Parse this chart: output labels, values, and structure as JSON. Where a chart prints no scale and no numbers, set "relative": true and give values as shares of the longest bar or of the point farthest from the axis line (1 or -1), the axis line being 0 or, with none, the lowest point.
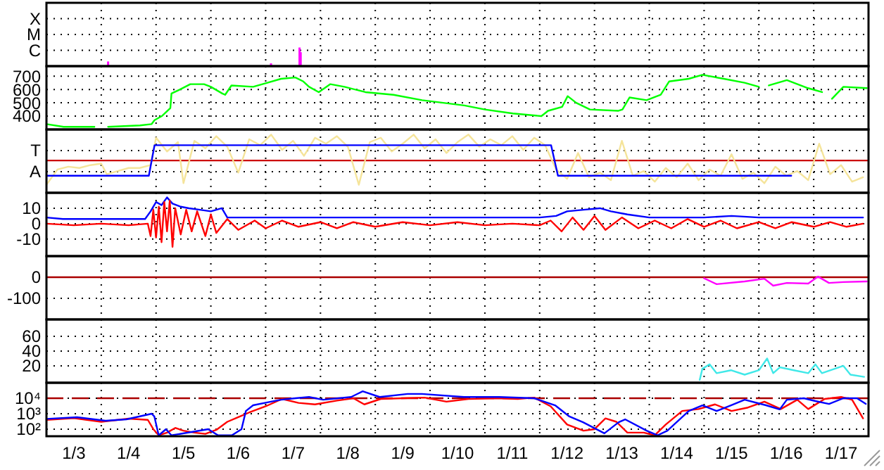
{
  "chart_data": [
    {
      "type": "bar",
      "relative": true,
      "xlim": [
        "--01-03",
        "--01-18"
      ],
      "xticks": [
        {
          "value": "--01-04",
          "label": null
        },
        {
          "value": "--01-05",
          "label": null
        },
        {
          "value": "--01-06",
          "label": null
        },
        {
          "value": "--01-07",
          "label": null
        },
        {
          "value": "--01-08",
          "label": null
        },
        {
          "value": "--01-09",
          "label": null
        },
        {
          "value": "--01-10",
          "label": null
        },
        {
          "value": "--01-11",
          "label": null
        },
        {
          "value": "--01-12",
          "label": null
        },
        {
          "value": "--01-13",
          "label": null
        },
        {
          "value": "--01-14",
          "label": null
        },
        {
          "value": "--01-15",
          "label": null
        },
        {
          "value": "--01-16",
          "label": null
        },
        {
          "value": "--01-17",
          "label": null
        }
      ],
      "tick_labels": false,
      "grid": true,
      "annotations": [
        "X",
        "M",
        "C"
      ],
      "series": [
        {
          "color": "#ff00ff",
          "x": [
            "--01-04T03:00",
            "--01-07T02:20",
            "--01-07T14:50",
            "--01-07T15:20"
          ],
          "values": [
            0.25,
            0.15,
            1,
            0.75
          ]
        }
      ]
    },
    {
      "type": "line",
      "xlim": [
        "--01-03",
        "--01-18"
      ],
      "ylim": [
        300,
        775
      ],
      "yticks": [
        700,
        600,
        500,
        400
      ],
      "xticks": [
        {
          "value": "--01-04",
          "label": null
        },
        {
          "value": "--01-05",
          "label": null
        },
        {
          "value": "--01-06",
          "label": null
        },
        {
          "value": "--01-07",
          "label": null
        },
        {
          "value": "--01-08",
          "label": null
        },
        {
          "value": "--01-09",
          "label": null
        },
        {
          "value": "--01-10",
          "label": null
        },
        {
          "value": "--01-11",
          "label": null
        },
        {
          "value": "--01-12",
          "label": null
        },
        {
          "value": "--01-13",
          "label": null
        },
        {
          "value": "--01-14",
          "label": null
        },
        {
          "value": "--01-15",
          "label": null
        },
        {
          "value": "--01-16",
          "label": null
        },
        {
          "value": "--01-17",
          "label": null
        }
      ],
      "tick_labels": "y",
      "grid": true,
      "series": [
        {
          "color": "#00ff00",
          "x": [
            "--01-03T00:00",
            "--01-03T07:30",
            "--01-03T21:00",
            "--01-03T21:30",
            "--01-04T03:00",
            "--01-04T17:00",
            "--01-04T22:00",
            "--01-04T23:20",
            "--01-05T02:30",
            "--01-05T06:15",
            "--01-05T06:45",
            "--01-05T10:30",
            "--01-05T15:00",
            "--01-05T21:00",
            "--01-06T00:00",
            "--01-06T05:00",
            "--01-06T06:15",
            "--01-06T09:00",
            "--01-06T18:30",
            "--01-07T00:45",
            "--01-07T06:45",
            "--01-07T13:00",
            "--01-07T16:30",
            "--01-07T19:00",
            "--01-07T23:15",
            "--01-08T04:20",
            "--01-08T10:30",
            "--01-08T19:40",
            "--01-09T08:00",
            "--01-09T20:30",
            "--01-10T15:00",
            "--01-11T00:00",
            "--01-11T12:15",
            "--01-12T00:45",
            "--01-12T03:40",
            "--01-12T09:50",
            "--01-12T12:15",
            "--01-12T16:00",
            "--01-12T22:00",
            "--01-13T10:30",
            "--01-13T12:15",
            "--01-13T15:20",
            "--01-13T22:50",
            "--01-14T05:00",
            "--01-14T08:40",
            "--01-14T17:15",
            "--01-14T23:15",
            "--01-15T08:40",
            "--01-15T17:45",
            "--01-16T00:00",
            "--01-16T01:10",
            "--01-16T04:20",
            "--01-16T12:15",
            "--01-16T21:30",
            "--01-17T03:40",
            "--01-17T05:30",
            "--01-17T08:00",
            "--01-17T13:00",
            "--01-17T23:15"
          ],
          "values": [
            340,
            320,
            320,
            null,
            320,
            330,
            340,
            370,
            400,
            460,
            570,
            600,
            640,
            640,
            620,
            570,
            560,
            630,
            620,
            650,
            680,
            690,
            660,
            620,
            580,
            640,
            620,
            580,
            560,
            520,
            480,
            450,
            420,
            400,
            440,
            470,
            550,
            500,
            450,
            440,
            450,
            540,
            520,
            560,
            660,
            680,
            710,
            680,
            650,
            620,
            null,
            630,
            670,
            610,
            580,
            null,
            530,
            620,
            610
          ]
        }
      ]
    },
    {
      "type": "line",
      "relative": true,
      "xlim": [
        "--01-03",
        "--01-18"
      ],
      "xticks": [
        {
          "value": "--01-04",
          "label": null
        },
        {
          "value": "--01-05",
          "label": null
        },
        {
          "value": "--01-06",
          "label": null
        },
        {
          "value": "--01-07",
          "label": null
        },
        {
          "value": "--01-08",
          "label": null
        },
        {
          "value": "--01-09",
          "label": null
        },
        {
          "value": "--01-10",
          "label": null
        },
        {
          "value": "--01-11",
          "label": null
        },
        {
          "value": "--01-12",
          "label": null
        },
        {
          "value": "--01-13",
          "label": null
        },
        {
          "value": "--01-14",
          "label": null
        },
        {
          "value": "--01-15",
          "label": null
        },
        {
          "value": "--01-16",
          "label": null
        },
        {
          "value": "--01-17",
          "label": null
        }
      ],
      "tick_labels": false,
      "grid": true,
      "annotations": [
        "T",
        "A"
      ],
      "ref_lines": [
        {
          "axis": "y",
          "value": 0,
          "color": "#cc0000"
        }
      ],
      "series": [
        {
          "color": "#f5e49a",
          "x": [
            "--01-03T00:00",
            "--01-03T04:48",
            "--01-03T09:36",
            "--01-03T14:24",
            "--01-03T19:12",
            "--01-04T00:00",
            "--01-04T02:24",
            "--01-04T07:12",
            "--01-04T12:00",
            "--01-04T16:48",
            "--01-04T21:36",
            "--01-05T00:00",
            "--01-05T04:48",
            "--01-05T09:36",
            "--01-05T12:00",
            "--01-05T16:48",
            "--01-05T21:36",
            "--01-06T02:24",
            "--01-06T07:12",
            "--01-06T12:00",
            "--01-06T16:48",
            "--01-06T21:36",
            "--01-07T02:24",
            "--01-07T07:12",
            "--01-07T12:00",
            "--01-07T16:48",
            "--01-07T21:36",
            "--01-08T02:24",
            "--01-08T07:12",
            "--01-08T12:00",
            "--01-08T16:48",
            "--01-08T21:36",
            "--01-09T02:24",
            "--01-09T07:12",
            "--01-09T12:00",
            "--01-09T16:48",
            "--01-09T21:36",
            "--01-10T02:24",
            "--01-10T07:12",
            "--01-10T12:00",
            "--01-10T16:48",
            "--01-10T21:36",
            "--01-11T02:24",
            "--01-11T07:12",
            "--01-11T12:00",
            "--01-11T16:48",
            "--01-11T21:36",
            "--01-12T02:24",
            "--01-12T07:12",
            "--01-12T12:00",
            "--01-12T16:48",
            "--01-12T21:36",
            "--01-13T02:24",
            "--01-13T07:12",
            "--01-13T12:00",
            "--01-13T16:48",
            "--01-13T21:36",
            "--01-14T02:24",
            "--01-14T07:12",
            "--01-14T12:00",
            "--01-14T16:48",
            "--01-14T21:36",
            "--01-15T02:24",
            "--01-15T07:12",
            "--01-15T12:00",
            "--01-15T16:48",
            "--01-15T21:36",
            "--01-16T02:24",
            "--01-16T07:12",
            "--01-16T12:00",
            "--01-16T16:48",
            "--01-16T21:36",
            "--01-17T02:24",
            "--01-17T07:12",
            "--01-17T12:00",
            "--01-17T16:48",
            "--01-17T21:36"
          ],
          "values": [
            -0.94,
            -0.35,
            -0.24,
            -0.29,
            -0.18,
            -0.12,
            -0.53,
            -0.41,
            -0.29,
            -0.29,
            -0.18,
            0.88,
            0.35,
            0.71,
            -0.88,
            0.76,
            0.47,
            0.94,
            0.53,
            -0.47,
            0.82,
            0.59,
            1,
            0.41,
            0.76,
            0.18,
            0.88,
            0.65,
            0.94,
            0.53,
            -0.94,
            0.71,
            0.88,
            0.35,
            0.65,
            1,
            0.47,
            0.82,
            0.29,
            0.71,
            1,
            0.53,
            0.82,
            0.59,
            0.94,
            0.41,
            0.88,
            0.59,
            -0.35,
            -0.71,
            0.29,
            -0.65,
            -0.47,
            -0.76,
            0.76,
            -0.59,
            -0.41,
            -0.82,
            -0.29,
            -0.65,
            -0.12,
            -0.76,
            -0.35,
            -0.59,
            0.24,
            -0.71,
            -0.47,
            -0.88,
            -0.24,
            -0.59,
            -0.41,
            -0.76,
            0.65,
            -0.53,
            -0.18,
            -0.82,
            -0.65
          ]
        },
        {
          "color": "#0000ff",
          "x": [
            "--01-03T00:00",
            "--01-04T20:50",
            "--01-04T23:20",
            "--01-12T05:00",
            "--01-12T08:00",
            "--01-16T14:10"
          ],
          "values": [
            -0.59,
            -0.59,
            0.59,
            0.59,
            -0.59,
            -0.59
          ]
        }
      ]
    },
    {
      "type": "line",
      "xlim": [
        "--01-03",
        "--01-18"
      ],
      "ylim": [
        -21,
        20
      ],
      "yticks": [
        10,
        0,
        -10
      ],
      "xticks": [
        {
          "value": "--01-04",
          "label": null
        },
        {
          "value": "--01-05",
          "label": null
        },
        {
          "value": "--01-06",
          "label": null
        },
        {
          "value": "--01-07",
          "label": null
        },
        {
          "value": "--01-08",
          "label": null
        },
        {
          "value": "--01-09",
          "label": null
        },
        {
          "value": "--01-10",
          "label": null
        },
        {
          "value": "--01-11",
          "label": null
        },
        {
          "value": "--01-12",
          "label": null
        },
        {
          "value": "--01-13",
          "label": null
        },
        {
          "value": "--01-14",
          "label": null
        },
        {
          "value": "--01-15",
          "label": null
        },
        {
          "value": "--01-16",
          "label": null
        },
        {
          "value": "--01-17",
          "label": null
        }
      ],
      "tick_labels": "y",
      "grid": true,
      "series": [
        {
          "color": "#0000ff",
          "x": [
            "--01-03T00:00",
            "--01-03T07:12",
            "--01-04T00:00",
            "--01-04T19:12",
            "--01-04T21:36",
            "--01-05T00:00",
            "--01-05T02:24",
            "--01-05T04:48",
            "--01-05T07:12",
            "--01-05T10:48",
            "--01-05T14:24",
            "--01-05T19:12",
            "--01-06T00:00",
            "--01-06T04:48",
            "--01-06T07:12",
            "--01-07T00:00",
            "--01-08T00:00",
            "--01-09T00:00",
            "--01-10T00:00",
            "--01-11T00:00",
            "--01-12T00:00",
            "--01-12T07:12",
            "--01-12T12:00",
            "--01-12T19:12",
            "--01-13T02:24",
            "--01-13T07:12",
            "--01-13T14:24",
            "--01-14T00:00",
            "--01-15T00:00",
            "--01-15T12:00",
            "--01-16T00:00",
            "--01-17T00:00",
            "--01-17T21:36"
          ],
          "values": [
            4,
            3,
            3,
            3,
            8,
            14,
            12,
            17,
            13,
            11,
            10,
            9,
            8,
            10,
            4,
            4,
            4,
            4,
            4,
            4,
            4,
            5,
            8,
            9,
            10,
            8,
            6,
            4,
            4,
            5,
            4,
            4,
            4
          ]
        },
        {
          "color": "#ff0000",
          "x": [
            "--01-03T00:00",
            "--01-03T12:00",
            "--01-04T00:00",
            "--01-04T12:00",
            "--01-04T20:24",
            "--01-04T21:36",
            "--01-04T22:48",
            "--01-05T00:00",
            "--01-05T01:12",
            "--01-05T02:24",
            "--01-05T03:36",
            "--01-05T04:48",
            "--01-05T06:00",
            "--01-05T07:12",
            "--01-05T08:24",
            "--01-05T10:48",
            "--01-05T13:12",
            "--01-05T15:36",
            "--01-05T18:00",
            "--01-05T21:36",
            "--01-06T00:00",
            "--01-06T02:24",
            "--01-06T07:12",
            "--01-06T12:00",
            "--01-06T19:12",
            "--01-07T00:00",
            "--01-07T07:12",
            "--01-07T14:24",
            "--01-08T00:00",
            "--01-08T07:12",
            "--01-08T14:24",
            "--01-09T00:00",
            "--01-09T12:00",
            "--01-10T00:00",
            "--01-10T12:00",
            "--01-11T00:00",
            "--01-11T12:00",
            "--01-12T00:00",
            "--01-12T04:48",
            "--01-12T09:36",
            "--01-12T14:24",
            "--01-12T19:12",
            "--01-13T00:00",
            "--01-13T04:48",
            "--01-13T12:00",
            "--01-13T19:12",
            "--01-14T02:24",
            "--01-14T09:36",
            "--01-14T16:48",
            "--01-15T00:00",
            "--01-15T07:12",
            "--01-15T14:24",
            "--01-16T00:00",
            "--01-16T07:12",
            "--01-16T14:24",
            "--01-17T00:00",
            "--01-17T07:12",
            "--01-17T14:24",
            "--01-17T21:36"
          ],
          "values": [
            0,
            -1,
            0,
            -1,
            0,
            -8,
            9,
            -9,
            11,
            -12,
            14,
            -5,
            15,
            -15,
            10,
            -7,
            9,
            -5,
            8,
            -8,
            6,
            -6,
            3,
            -4,
            2,
            -3,
            2,
            -2,
            1,
            -3,
            1,
            -2,
            1,
            -1,
            1,
            -1,
            0,
            -1,
            2,
            -5,
            4,
            -4,
            5,
            -4,
            4,
            -3,
            2,
            -3,
            3,
            -2,
            2,
            -3,
            1,
            -3,
            1,
            -2,
            1,
            -2,
            0
          ]
        }
      ]
    },
    {
      "type": "line",
      "xlim": [
        "--01-03",
        "--01-18"
      ],
      "ylim": [
        -200,
        100
      ],
      "yticks": [
        0,
        -100
      ],
      "xticks": [
        {
          "value": "--01-04",
          "label": null
        },
        {
          "value": "--01-05",
          "label": null
        },
        {
          "value": "--01-06",
          "label": null
        },
        {
          "value": "--01-07",
          "label": null
        },
        {
          "value": "--01-08",
          "label": null
        },
        {
          "value": "--01-09",
          "label": null
        },
        {
          "value": "--01-10",
          "label": null
        },
        {
          "value": "--01-11",
          "label": null
        },
        {
          "value": "--01-12",
          "label": null
        },
        {
          "value": "--01-13",
          "label": null
        },
        {
          "value": "--01-14",
          "label": null
        },
        {
          "value": "--01-15",
          "label": null
        },
        {
          "value": "--01-16",
          "label": null
        },
        {
          "value": "--01-17",
          "label": null
        }
      ],
      "tick_labels": "y",
      "grid": true,
      "ref_lines": [
        {
          "axis": "y",
          "value": 0,
          "color": "#aa0000"
        }
      ],
      "series": [
        {
          "color": "#ff00ff",
          "x": [
            "--01-15T00:00",
            "--01-15T05:30",
            "--01-15T17:45",
            "--01-16T02:24",
            "--01-16T06:15",
            "--01-16T12:15",
            "--01-16T21:36",
            "--01-17T01:55",
            "--01-17T06:40",
            "--01-17T13:00",
            "--01-17T23:15"
          ],
          "values": [
            -5,
            -33,
            -20,
            -7,
            -40,
            -27,
            -30,
            3,
            -27,
            -23,
            -20
          ]
        }
      ]
    },
    {
      "type": "line",
      "xlim": [
        "--01-03",
        "--01-18"
      ],
      "ylim": [
        -3,
        83
      ],
      "yticks": [
        60,
        40,
        20
      ],
      "xticks": [
        {
          "value": "--01-04",
          "label": null
        },
        {
          "value": "--01-05",
          "label": null
        },
        {
          "value": "--01-06",
          "label": null
        },
        {
          "value": "--01-07",
          "label": null
        },
        {
          "value": "--01-08",
          "label": null
        },
        {
          "value": "--01-09",
          "label": null
        },
        {
          "value": "--01-10",
          "label": null
        },
        {
          "value": "--01-11",
          "label": null
        },
        {
          "value": "--01-12",
          "label": null
        },
        {
          "value": "--01-13",
          "label": null
        },
        {
          "value": "--01-14",
          "label": null
        },
        {
          "value": "--01-15",
          "label": null
        },
        {
          "value": "--01-16",
          "label": null
        },
        {
          "value": "--01-17",
          "label": null
        }
      ],
      "tick_labels": "y",
      "grid": true,
      "series": [
        {
          "color": "#40e8e8",
          "x": [
            "--01-14T22:05",
            "--01-14T23:15",
            "--01-15T02:24",
            "--01-15T05:30",
            "--01-15T11:45",
            "--01-15T17:45",
            "--01-16T00:00",
            "--01-16T03:36",
            "--01-16T06:15",
            "--01-16T09:10",
            "--01-16T15:20",
            "--01-16T21:36",
            "--01-17T00:45",
            "--01-17T03:36",
            "--01-17T13:00",
            "--01-17T16:05",
            "--01-17T22:05"
          ],
          "values": [
            1,
            16,
            22,
            10,
            14,
            8,
            14,
            30,
            10,
            18,
            14,
            10,
            22,
            10,
            20,
            8,
            5
          ]
        }
      ]
    },
    {
      "type": "line",
      "log": true,
      "xlim": [
        "--01-03",
        "--01-18"
      ],
      "ylim": [
        35,
        100000
      ],
      "yticks": [
        {
          "value": 10000,
          "label": "10⁴"
        },
        {
          "value": 1000,
          "label": "10³"
        },
        {
          "value": 100,
          "label": "10²"
        }
      ],
      "xticks": [
        {
          "value": "--01-03T12:00",
          "label": "1/3"
        },
        {
          "value": "--01-04",
          "label": null
        },
        {
          "value": "--01-04T12:00",
          "label": "1/4"
        },
        {
          "value": "--01-05",
          "label": null
        },
        {
          "value": "--01-05T12:00",
          "label": "1/5"
        },
        {
          "value": "--01-06",
          "label": null
        },
        {
          "value": "--01-06T12:00",
          "label": "1/6"
        },
        {
          "value": "--01-07",
          "label": null
        },
        {
          "value": "--01-07T12:00",
          "label": "1/7"
        },
        {
          "value": "--01-08",
          "label": null
        },
        {
          "value": "--01-08T12:00",
          "label": "1/8"
        },
        {
          "value": "--01-09",
          "label": null
        },
        {
          "value": "--01-09T12:00",
          "label": "1/9"
        },
        {
          "value": "--01-10",
          "label": null
        },
        {
          "value": "--01-10T12:00",
          "label": "1/10"
        },
        {
          "value": "--01-11",
          "label": null
        },
        {
          "value": "--01-11T12:00",
          "label": "1/11"
        },
        {
          "value": "--01-12",
          "label": null
        },
        {
          "value": "--01-12T12:00",
          "label": "1/12"
        },
        {
          "value": "--01-13",
          "label": null
        },
        {
          "value": "--01-13T12:00",
          "label": "1/13"
        },
        {
          "value": "--01-14",
          "label": null
        },
        {
          "value": "--01-14T12:00",
          "label": "1/14"
        },
        {
          "value": "--01-15",
          "label": null
        },
        {
          "value": "--01-15T12:00",
          "label": "1/15"
        },
        {
          "value": "--01-16",
          "label": null
        },
        {
          "value": "--01-16T12:00",
          "label": "1/16"
        },
        {
          "value": "--01-17",
          "label": null
        },
        {
          "value": "--01-17T12:00",
          "label": "1/17"
        }
      ],
      "grid": true,
      "ref_lines": [
        {
          "axis": "y",
          "value": 10000,
          "color": "#aa0000",
          "line_style": "dashed"
        }
      ],
      "series": [
        {
          "color": "#ff0000",
          "x": [
            "--01-03T00:00",
            "--01-03T12:00",
            "--01-04T00:00",
            "--01-04T12:00",
            "--01-04T20:24",
            "--01-04T22:48",
            "--01-05T01:12",
            "--01-05T04:48",
            "--01-05T08:24",
            "--01-05T12:00",
            "--01-05T16:48",
            "--01-05T21:36",
            "--01-06T02:24",
            "--01-06T07:12",
            "--01-06T12:00",
            "--01-06T16:48",
            "--01-07T00:00",
            "--01-07T07:12",
            "--01-07T14:24",
            "--01-07T21:36",
            "--01-08T07:12",
            "--01-08T14:24",
            "--01-08T19:12",
            "--01-09T02:24",
            "--01-09T12:00",
            "--01-09T21:36",
            "--01-10T07:12",
            "--01-10T16:48",
            "--01-11T04:48",
            "--01-11T14:24",
            "--01-11T21:36",
            "--01-12T04:48",
            "--01-12T12:00",
            "--01-12T19:12",
            "--01-13T00:00",
            "--01-13T04:48",
            "--01-13T09:36",
            "--01-13T14:24",
            "--01-13T21:36",
            "--01-14T02:24",
            "--01-14T07:12",
            "--01-14T14:24",
            "--01-14T21:36",
            "--01-15T04:48",
            "--01-15T12:00",
            "--01-15T19:12",
            "--01-16T02:24",
            "--01-16T09:36",
            "--01-16T16:48",
            "--01-16T21:36",
            "--01-17T04:48",
            "--01-17T12:00",
            "--01-17T16:48",
            "--01-17T21:36"
          ],
          "values": [
            400,
            520,
            300,
            480,
            400,
            100,
            40,
            60,
            120,
            80,
            60,
            50,
            90,
            300,
            600,
            1200,
            3000,
            9000,
            5000,
            4000,
            7000,
            10000,
            4000,
            9000,
            10000,
            11000,
            6000,
            9000,
            10000,
            9000,
            11000,
            3000,
            200,
            80,
            100,
            500,
            300,
            60,
            60,
            40,
            200,
            1500,
            2000,
            4000,
            1500,
            2500,
            6000,
            2000,
            8000,
            2000,
            9000,
            12000,
            8000,
            500
          ]
        },
        {
          "color": "#0000ff",
          "x": [
            "--01-03T00:00",
            "--01-03T13:25",
            "--01-04T01:55",
            "--01-04T11:00",
            "--01-04T22:05",
            "--01-04T23:15",
            "--01-05T01:10",
            "--01-05T04:20",
            "--01-05T06:45",
            "--01-05T22:50",
            "--01-06T03:10",
            "--01-06T09:10",
            "--01-06T13:25",
            "--01-06T15:20",
            "--01-06T18:30",
            "--01-07T00:45",
            "--01-07T06:45",
            "--01-07T13:00",
            "--01-07T19:00",
            "--01-08T01:10",
            "--01-08T13:25",
            "--01-08T18:30",
            "--01-09T01:55",
            "--01-09T14:10",
            "--01-09T20:25",
            "--01-10T14:53",
            "--01-11T06:15",
            "--01-11T21:36",
            "--01-12T06:45",
            "--01-12T13:00",
            "--01-12T19:00",
            "--01-13T04:20",
            "--01-13T10:35",
            "--01-13T13:25",
            "--01-13T22:50",
            "--01-14T03:36",
            "--01-14T07:55",
            "--01-14T17:17",
            "--01-14T23:17",
            "--01-15T05:31",
            "--01-15T11:46",
            "--01-15T17:46",
            "--01-16T03:07",
            "--01-16T09:07",
            "--01-16T12:14",
            "--01-16T19:41",
            "--01-17T00:43",
            "--01-17T06:43",
            "--01-17T12:58",
            "--01-17T18:58",
            "--01-17T22:48"
          ],
          "values": [
            460,
            590,
            350,
            430,
            1000,
            660,
            40,
            100,
            40,
            100,
            40,
            40,
            100,
            1500,
            3500,
            5400,
            8000,
            10000,
            12000,
            8000,
            12000,
            28000,
            12000,
            19000,
            19000,
            12000,
            12000,
            10000,
            3500,
            660,
            280,
            54,
            280,
            430,
            80,
            40,
            80,
            1500,
            3500,
            1500,
            3500,
            8000,
            3500,
            1900,
            8000,
            10000,
            6600,
            4300,
            10000,
            10000,
            4300
          ]
        }
      ]
    }
  ]
}
